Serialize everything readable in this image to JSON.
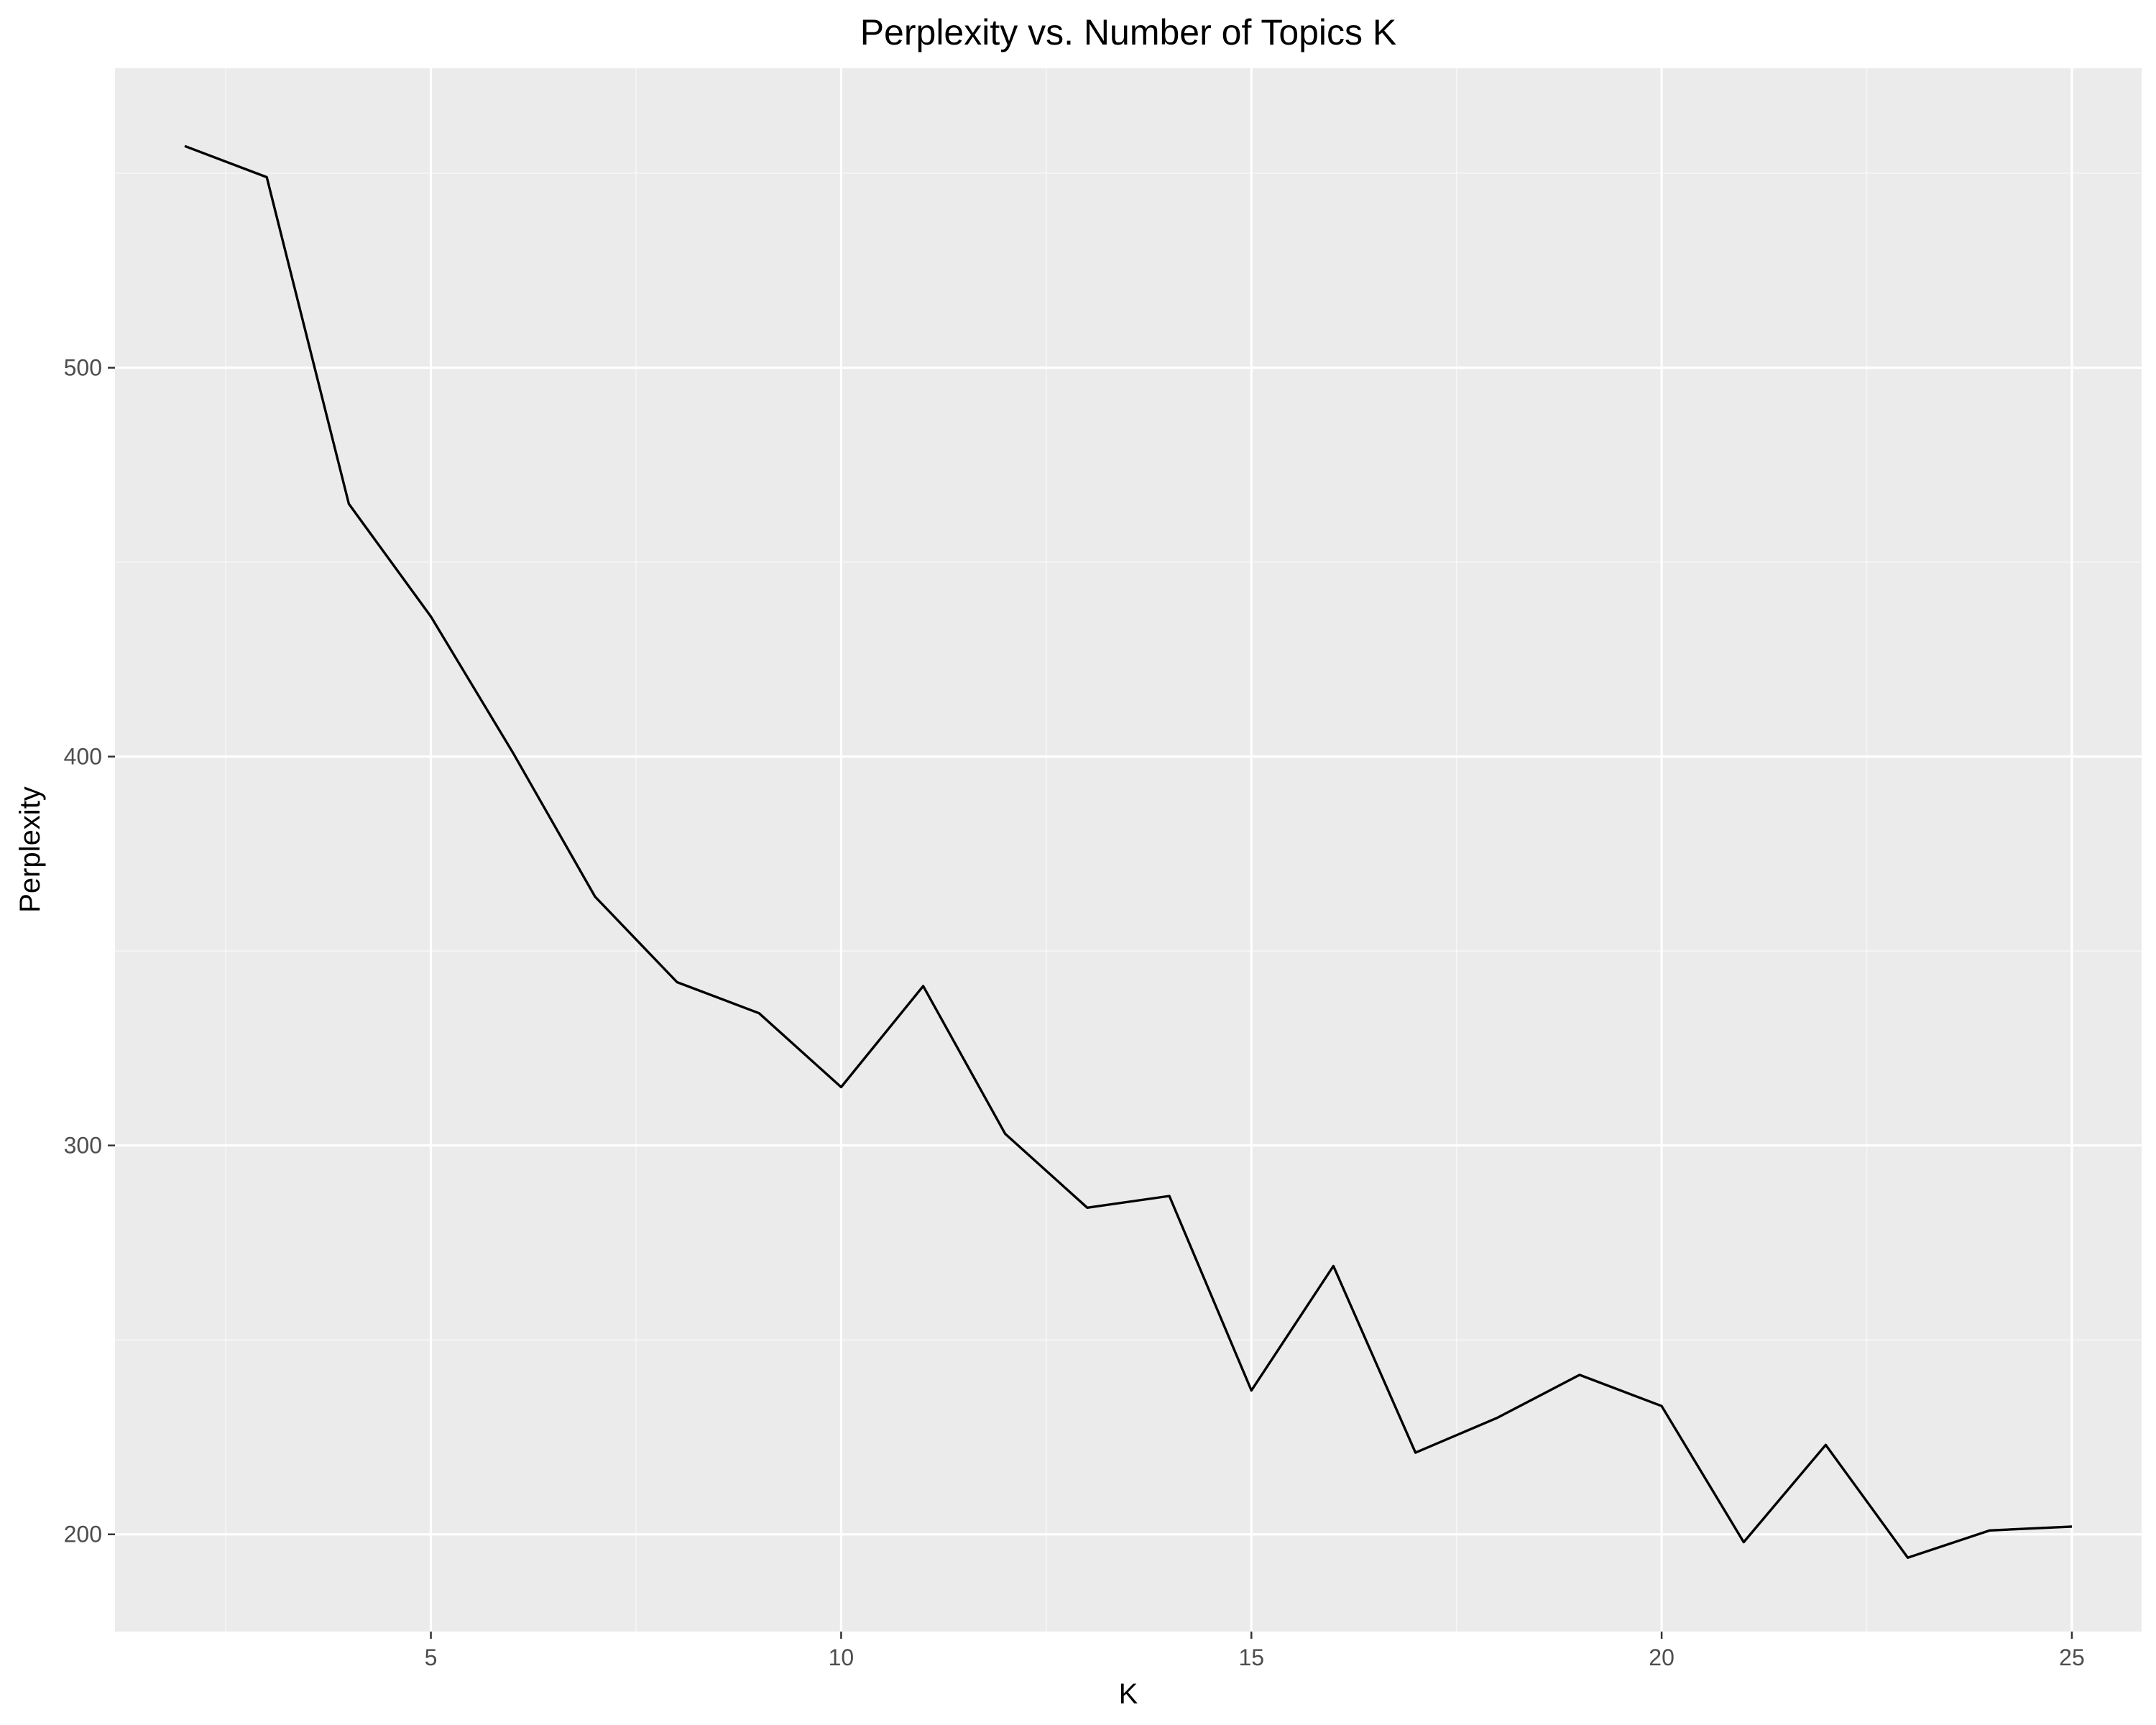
{
  "chart_data": {
    "type": "line",
    "title": "Perplexity vs. Number of Topics K",
    "xlabel": "K",
    "ylabel": "Perplexity",
    "xlim": [
      1.15,
      25.85
    ],
    "ylim": [
      175,
      577
    ],
    "x_ticks": [
      5,
      10,
      15,
      20,
      25
    ],
    "x_minor_ticks": [
      2.5,
      7.5,
      12.5,
      17.5,
      22.5
    ],
    "y_ticks": [
      200,
      300,
      400,
      500
    ],
    "y_minor_ticks": [
      250,
      350,
      450,
      550
    ],
    "grid": true,
    "legend": "none",
    "series": [
      {
        "x": [
          2,
          3,
          4,
          5,
          6,
          7,
          8,
          9,
          10,
          11,
          12,
          13,
          14,
          15,
          16,
          17,
          18,
          19,
          20,
          21,
          22,
          23,
          24,
          25
        ],
        "values": [
          557,
          549,
          465,
          436,
          401,
          364,
          342,
          334,
          315,
          341,
          303,
          284,
          287,
          237,
          269,
          221,
          230,
          241,
          233,
          198,
          223,
          194,
          201,
          202
        ]
      }
    ]
  },
  "colors": {
    "panel_background": "#ebebeb",
    "grid_major": "#ffffff",
    "line": "#000000",
    "tick_text": "#4d4d4d"
  }
}
